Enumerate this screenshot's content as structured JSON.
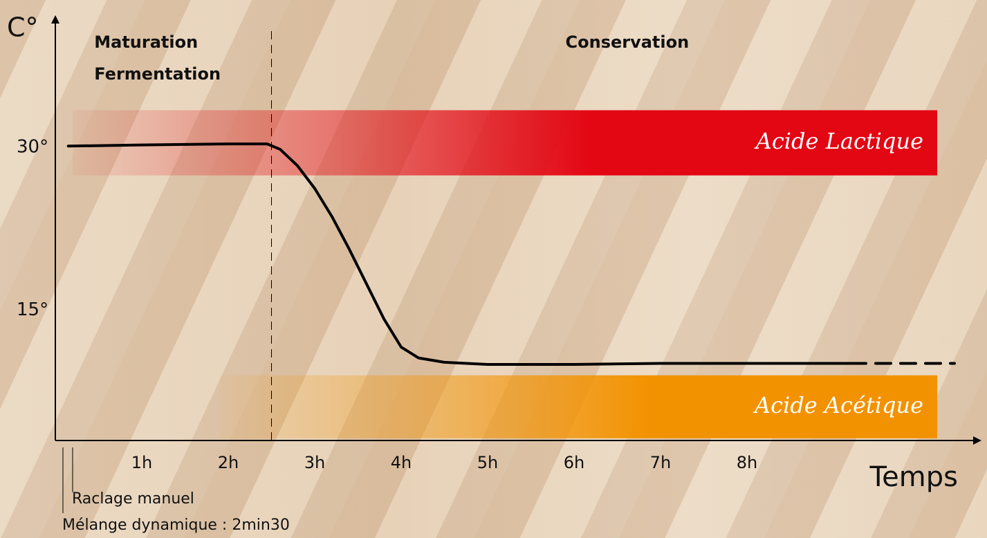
{
  "chart_data": {
    "type": "line",
    "ylabel": "C°",
    "xlabel": "Temps",
    "xlim": [
      0,
      10.6
    ],
    "ylim": [
      3,
      41
    ],
    "xticks": [
      {
        "value": 1,
        "label": "1h"
      },
      {
        "value": 2,
        "label": "2h"
      },
      {
        "value": 3,
        "label": "3h"
      },
      {
        "value": 4,
        "label": "4h"
      },
      {
        "value": 5,
        "label": "5h"
      },
      {
        "value": 6,
        "label": "6h"
      },
      {
        "value": 7,
        "label": "7h"
      },
      {
        "value": 8,
        "label": "8h"
      }
    ],
    "yticks": [
      {
        "value": 30,
        "label": "30°"
      },
      {
        "value": 15,
        "label": "15°"
      }
    ],
    "series": [
      {
        "color": "#000000",
        "dash": false,
        "x": [
          0.15,
          1,
          2,
          2.45,
          2.6,
          2.8,
          3.0,
          3.2,
          3.4,
          3.6,
          3.8,
          4.0,
          4.2,
          4.5,
          5,
          6,
          7,
          9.2
        ],
        "values": [
          30.1,
          30.2,
          30.3,
          30.3,
          29.8,
          28.3,
          26.2,
          23.6,
          20.6,
          17.4,
          14.2,
          11.6,
          10.6,
          10.2,
          10.0,
          10.0,
          10.1,
          10.1
        ]
      },
      {
        "color": "#000000",
        "dash": true,
        "x": [
          9.2,
          10.4
        ],
        "values": [
          10.1,
          10.1
        ]
      }
    ],
    "bands": [
      {
        "label": "Acide Lactique",
        "ylim": [
          27.4,
          33.4
        ],
        "xlim": [
          0.2,
          10.2
        ],
        "color": "#e30613"
      },
      {
        "label": "Acide Acétique",
        "ylim": [
          3.2,
          9.0
        ],
        "xlim": [
          1.9,
          10.2
        ],
        "color": "#f39200"
      }
    ],
    "phase_divider": 2.5,
    "phases": [
      {
        "lines": [
          "Maturation",
          "Fermentation"
        ],
        "x": 0.45
      },
      {
        "lines": [
          "Conservation"
        ],
        "x": 5.9
      }
    ],
    "notes": [
      "Raclage manuel",
      "Mélange dynamique : 2min30"
    ]
  }
}
